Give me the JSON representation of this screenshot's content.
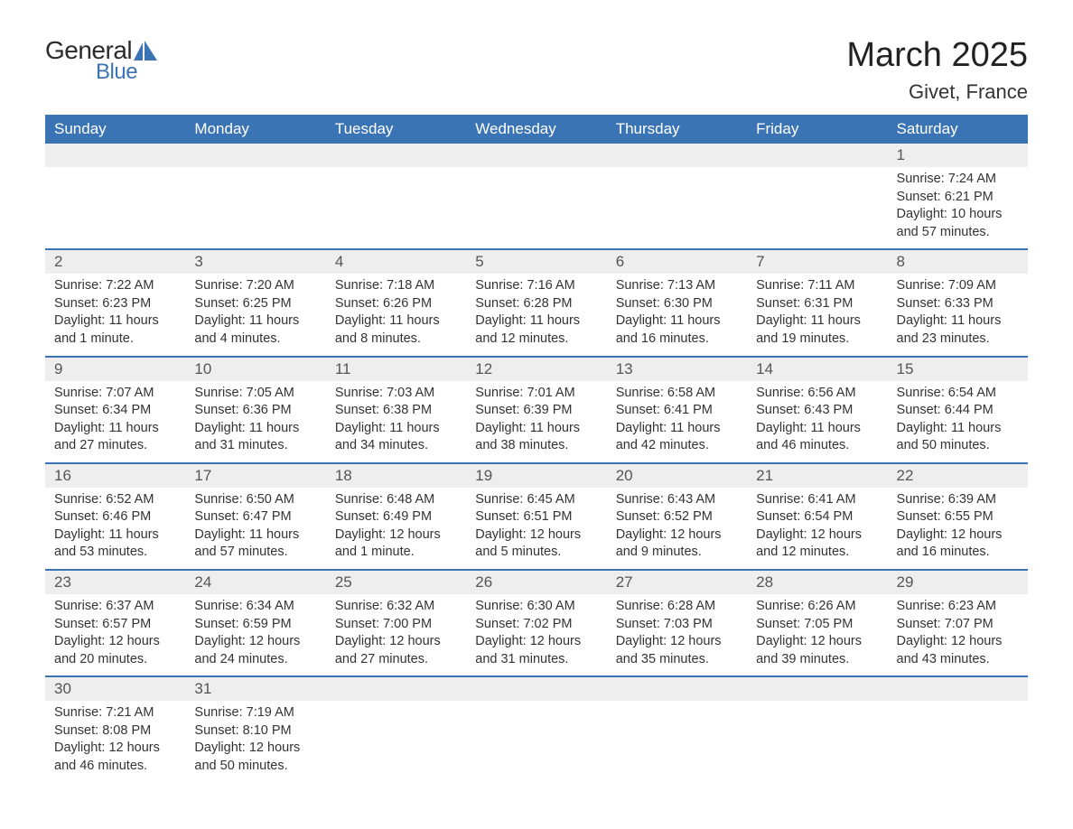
{
  "brand": {
    "general": "General",
    "blue": "Blue",
    "logo_color": "#3b74b5"
  },
  "title": "March 2025",
  "location": "Givet, France",
  "colors": {
    "header_bg": "#3b74b5",
    "header_text": "#ffffff",
    "daynum_bg": "#eeeeee",
    "daynum_text": "#555555",
    "body_text": "#333333",
    "separator": "#3b74b5",
    "page_bg": "#ffffff"
  },
  "fonts": {
    "title_size_pt": 28,
    "location_size_pt": 16,
    "dayhead_size_pt": 13,
    "daynum_size_pt": 13,
    "body_size_pt": 11
  },
  "day_names": [
    "Sunday",
    "Monday",
    "Tuesday",
    "Wednesday",
    "Thursday",
    "Friday",
    "Saturday"
  ],
  "weeks": [
    [
      null,
      null,
      null,
      null,
      null,
      null,
      {
        "n": "1",
        "sunrise": "Sunrise: 7:24 AM",
        "sunset": "Sunset: 6:21 PM",
        "daylight": "Daylight: 10 hours and 57 minutes."
      }
    ],
    [
      {
        "n": "2",
        "sunrise": "Sunrise: 7:22 AM",
        "sunset": "Sunset: 6:23 PM",
        "daylight": "Daylight: 11 hours and 1 minute."
      },
      {
        "n": "3",
        "sunrise": "Sunrise: 7:20 AM",
        "sunset": "Sunset: 6:25 PM",
        "daylight": "Daylight: 11 hours and 4 minutes."
      },
      {
        "n": "4",
        "sunrise": "Sunrise: 7:18 AM",
        "sunset": "Sunset: 6:26 PM",
        "daylight": "Daylight: 11 hours and 8 minutes."
      },
      {
        "n": "5",
        "sunrise": "Sunrise: 7:16 AM",
        "sunset": "Sunset: 6:28 PM",
        "daylight": "Daylight: 11 hours and 12 minutes."
      },
      {
        "n": "6",
        "sunrise": "Sunrise: 7:13 AM",
        "sunset": "Sunset: 6:30 PM",
        "daylight": "Daylight: 11 hours and 16 minutes."
      },
      {
        "n": "7",
        "sunrise": "Sunrise: 7:11 AM",
        "sunset": "Sunset: 6:31 PM",
        "daylight": "Daylight: 11 hours and 19 minutes."
      },
      {
        "n": "8",
        "sunrise": "Sunrise: 7:09 AM",
        "sunset": "Sunset: 6:33 PM",
        "daylight": "Daylight: 11 hours and 23 minutes."
      }
    ],
    [
      {
        "n": "9",
        "sunrise": "Sunrise: 7:07 AM",
        "sunset": "Sunset: 6:34 PM",
        "daylight": "Daylight: 11 hours and 27 minutes."
      },
      {
        "n": "10",
        "sunrise": "Sunrise: 7:05 AM",
        "sunset": "Sunset: 6:36 PM",
        "daylight": "Daylight: 11 hours and 31 minutes."
      },
      {
        "n": "11",
        "sunrise": "Sunrise: 7:03 AM",
        "sunset": "Sunset: 6:38 PM",
        "daylight": "Daylight: 11 hours and 34 minutes."
      },
      {
        "n": "12",
        "sunrise": "Sunrise: 7:01 AM",
        "sunset": "Sunset: 6:39 PM",
        "daylight": "Daylight: 11 hours and 38 minutes."
      },
      {
        "n": "13",
        "sunrise": "Sunrise: 6:58 AM",
        "sunset": "Sunset: 6:41 PM",
        "daylight": "Daylight: 11 hours and 42 minutes."
      },
      {
        "n": "14",
        "sunrise": "Sunrise: 6:56 AM",
        "sunset": "Sunset: 6:43 PM",
        "daylight": "Daylight: 11 hours and 46 minutes."
      },
      {
        "n": "15",
        "sunrise": "Sunrise: 6:54 AM",
        "sunset": "Sunset: 6:44 PM",
        "daylight": "Daylight: 11 hours and 50 minutes."
      }
    ],
    [
      {
        "n": "16",
        "sunrise": "Sunrise: 6:52 AM",
        "sunset": "Sunset: 6:46 PM",
        "daylight": "Daylight: 11 hours and 53 minutes."
      },
      {
        "n": "17",
        "sunrise": "Sunrise: 6:50 AM",
        "sunset": "Sunset: 6:47 PM",
        "daylight": "Daylight: 11 hours and 57 minutes."
      },
      {
        "n": "18",
        "sunrise": "Sunrise: 6:48 AM",
        "sunset": "Sunset: 6:49 PM",
        "daylight": "Daylight: 12 hours and 1 minute."
      },
      {
        "n": "19",
        "sunrise": "Sunrise: 6:45 AM",
        "sunset": "Sunset: 6:51 PM",
        "daylight": "Daylight: 12 hours and 5 minutes."
      },
      {
        "n": "20",
        "sunrise": "Sunrise: 6:43 AM",
        "sunset": "Sunset: 6:52 PM",
        "daylight": "Daylight: 12 hours and 9 minutes."
      },
      {
        "n": "21",
        "sunrise": "Sunrise: 6:41 AM",
        "sunset": "Sunset: 6:54 PM",
        "daylight": "Daylight: 12 hours and 12 minutes."
      },
      {
        "n": "22",
        "sunrise": "Sunrise: 6:39 AM",
        "sunset": "Sunset: 6:55 PM",
        "daylight": "Daylight: 12 hours and 16 minutes."
      }
    ],
    [
      {
        "n": "23",
        "sunrise": "Sunrise: 6:37 AM",
        "sunset": "Sunset: 6:57 PM",
        "daylight": "Daylight: 12 hours and 20 minutes."
      },
      {
        "n": "24",
        "sunrise": "Sunrise: 6:34 AM",
        "sunset": "Sunset: 6:59 PM",
        "daylight": "Daylight: 12 hours and 24 minutes."
      },
      {
        "n": "25",
        "sunrise": "Sunrise: 6:32 AM",
        "sunset": "Sunset: 7:00 PM",
        "daylight": "Daylight: 12 hours and 27 minutes."
      },
      {
        "n": "26",
        "sunrise": "Sunrise: 6:30 AM",
        "sunset": "Sunset: 7:02 PM",
        "daylight": "Daylight: 12 hours and 31 minutes."
      },
      {
        "n": "27",
        "sunrise": "Sunrise: 6:28 AM",
        "sunset": "Sunset: 7:03 PM",
        "daylight": "Daylight: 12 hours and 35 minutes."
      },
      {
        "n": "28",
        "sunrise": "Sunrise: 6:26 AM",
        "sunset": "Sunset: 7:05 PM",
        "daylight": "Daylight: 12 hours and 39 minutes."
      },
      {
        "n": "29",
        "sunrise": "Sunrise: 6:23 AM",
        "sunset": "Sunset: 7:07 PM",
        "daylight": "Daylight: 12 hours and 43 minutes."
      }
    ],
    [
      {
        "n": "30",
        "sunrise": "Sunrise: 7:21 AM",
        "sunset": "Sunset: 8:08 PM",
        "daylight": "Daylight: 12 hours and 46 minutes."
      },
      {
        "n": "31",
        "sunrise": "Sunrise: 7:19 AM",
        "sunset": "Sunset: 8:10 PM",
        "daylight": "Daylight: 12 hours and 50 minutes."
      },
      null,
      null,
      null,
      null,
      null
    ]
  ]
}
